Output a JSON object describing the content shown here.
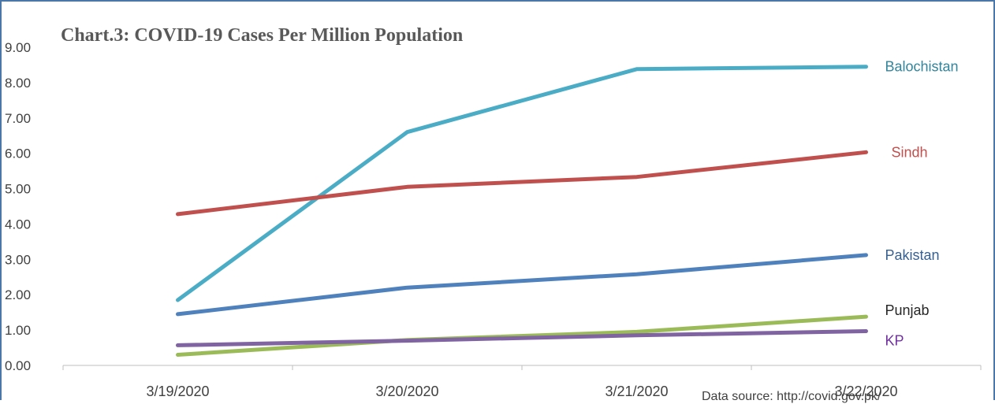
{
  "chart_data": {
    "type": "line",
    "title": "Chart.3: COVID-19 Cases Per Million Population",
    "categories": [
      "3/19/2020",
      "3/20/2020",
      "3/21/2020",
      "3/22/2020"
    ],
    "y_ticks": [
      "0.00",
      "1.00",
      "2.00",
      "3.00",
      "4.00",
      "5.00",
      "6.00",
      "7.00",
      "8.00",
      "9.00"
    ],
    "ylim": [
      0,
      9
    ],
    "grid": false,
    "legend": "series labels at right end of lines",
    "series": [
      {
        "name": "Balochistan",
        "color": "#4bacc6",
        "label_color": "#31859c",
        "values": [
          1.85,
          6.6,
          8.38,
          8.45
        ]
      },
      {
        "name": "Sindh",
        "color": "#c0504d",
        "label_color": "#c0504d",
        "values": [
          4.28,
          5.05,
          5.33,
          6.03
        ]
      },
      {
        "name": "Pakistan",
        "color": "#4f81bd",
        "label_color": "#376092",
        "values": [
          1.45,
          2.2,
          2.58,
          3.12
        ]
      },
      {
        "name": "Punjab",
        "color": "#9bbb59",
        "label_color": "#262626",
        "values": [
          0.3,
          0.72,
          0.95,
          1.38
        ]
      },
      {
        "name": "KP",
        "color": "#8064a2",
        "label_color": "#7030a0",
        "values": [
          0.57,
          0.7,
          0.85,
          0.97
        ]
      }
    ]
  },
  "source_note": "Data source: http://covid.gov.pk/"
}
